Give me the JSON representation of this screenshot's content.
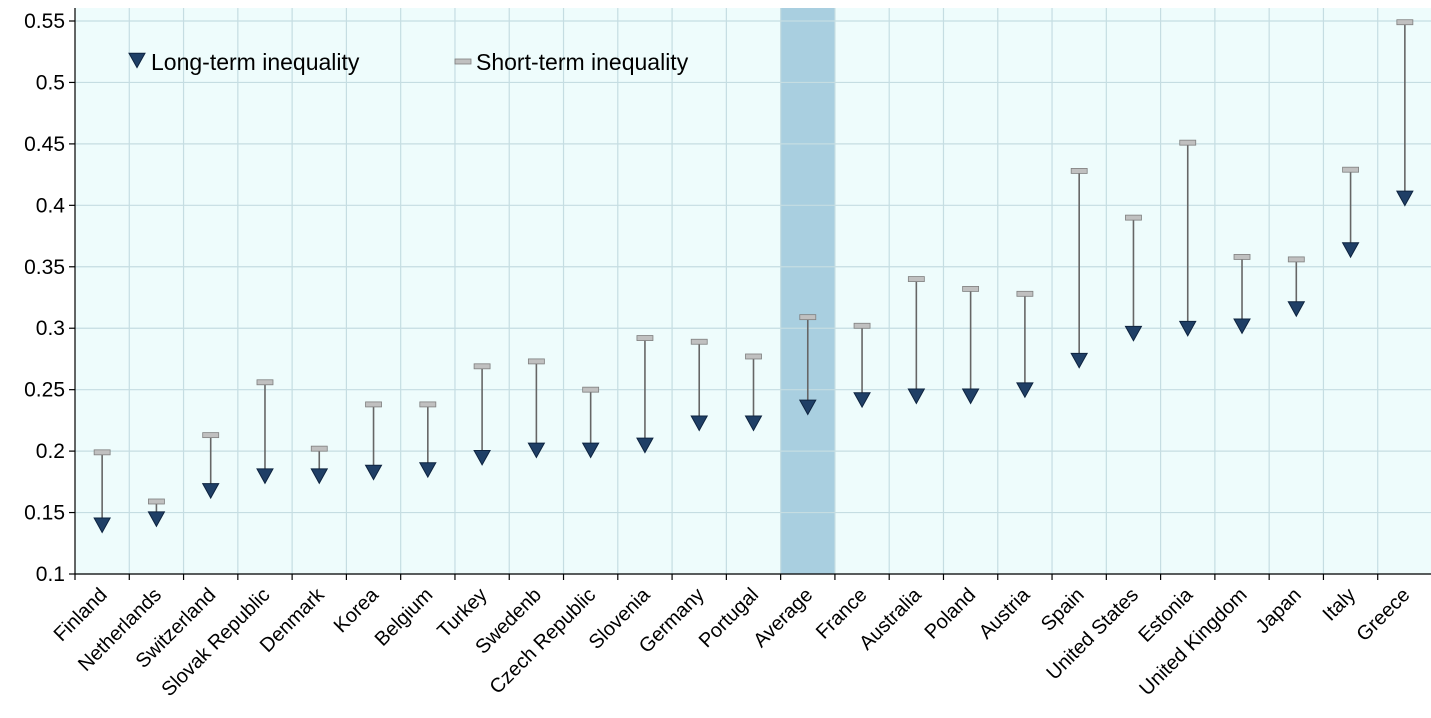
{
  "chart_data": {
    "type": "scatter",
    "title": "",
    "xlabel": "",
    "ylabel": "",
    "ylim": [
      0.1,
      0.55
    ],
    "yticks": [
      "0.1",
      "0.15",
      "0.2",
      "0.25",
      "0.3",
      "0.35",
      "0.4",
      "0.45",
      "0.5",
      "0.55"
    ],
    "grid": true,
    "legend_position": "top-left",
    "highlight_category": "Average",
    "categories": [
      "Finland",
      "Netherlands",
      "Switzerland",
      "Slovak Republic",
      "Denmark",
      "Korea",
      "Belgium",
      "Turkey",
      "Swedenb",
      "Czech Republic",
      "Slovenia",
      "Germany",
      "Portugal",
      "Average",
      "France",
      "Australia",
      "Poland",
      "Austria",
      "Spain",
      "United States",
      "Estonia",
      "United Kingdom",
      "Japan",
      "Italy",
      "Greece"
    ],
    "series": [
      {
        "name": "Long-term inequality",
        "marker": "triangle-down",
        "color": "#1f3f66",
        "values": [
          0.14,
          0.145,
          0.168,
          0.18,
          0.18,
          0.183,
          0.185,
          0.195,
          0.201,
          0.201,
          0.205,
          0.223,
          0.223,
          0.236,
          0.242,
          0.245,
          0.245,
          0.25,
          0.274,
          0.296,
          0.3,
          0.302,
          0.316,
          0.364,
          0.406
        ]
      },
      {
        "name": "Short-term inequality",
        "marker": "dash",
        "color": "#c0c0c0",
        "values": [
          0.199,
          0.159,
          0.213,
          0.256,
          0.202,
          0.238,
          0.238,
          0.269,
          0.273,
          0.25,
          0.292,
          0.289,
          0.277,
          0.309,
          0.302,
          0.34,
          0.332,
          0.328,
          0.428,
          0.39,
          0.451,
          0.358,
          0.356,
          0.429,
          0.549
        ]
      }
    ]
  },
  "colors": {
    "plot_background": "#eefcfc",
    "highlight_band": "#a9cfe0",
    "grid": "#c5dde2",
    "connector": "#666666"
  }
}
